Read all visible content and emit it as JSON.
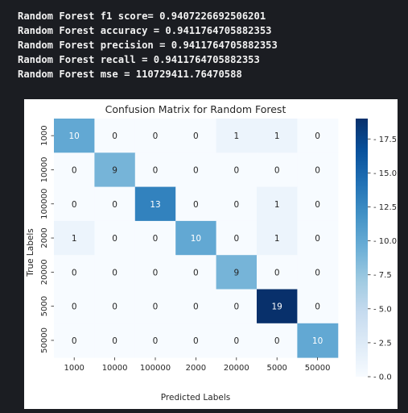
{
  "metrics": [
    "Random Forest f1 score= 0.9407226692506201",
    "Random Forest accuracy = 0.9411764705882353",
    "Random Forest precision = 0.9411764705882353",
    "Random Forest recall = 0.9411764705882353",
    "Random Forest mse = 110729411.76470588"
  ],
  "chart_data": {
    "type": "heatmap",
    "title": "Confusion Matrix for Random Forest",
    "xlabel": "Predicted Labels",
    "ylabel": "True Labels",
    "x_categories": [
      "1000",
      "10000",
      "100000",
      "2000",
      "20000",
      "5000",
      "50000"
    ],
    "y_categories": [
      "1000",
      "10000",
      "100000",
      "2000",
      "20000",
      "5000",
      "50000"
    ],
    "values": [
      [
        10,
        0,
        0,
        0,
        1,
        1,
        0
      ],
      [
        0,
        9,
        0,
        0,
        0,
        0,
        0
      ],
      [
        0,
        0,
        13,
        0,
        0,
        1,
        0
      ],
      [
        1,
        0,
        0,
        10,
        0,
        1,
        0
      ],
      [
        0,
        0,
        0,
        0,
        9,
        0,
        0
      ],
      [
        0,
        0,
        0,
        0,
        0,
        19,
        0
      ],
      [
        0,
        0,
        0,
        0,
        0,
        0,
        10
      ]
    ],
    "colormap": "Blues",
    "colorbar": {
      "range": [
        0,
        19
      ],
      "ticks": [
        0.0,
        2.5,
        5.0,
        7.5,
        10.0,
        12.5,
        15.0,
        17.5
      ],
      "tick_labels": [
        "0.0",
        "2.5",
        "5.0",
        "7.5",
        "10.0",
        "12.5",
        "15.0",
        "17.5"
      ]
    },
    "annotations": true
  }
}
